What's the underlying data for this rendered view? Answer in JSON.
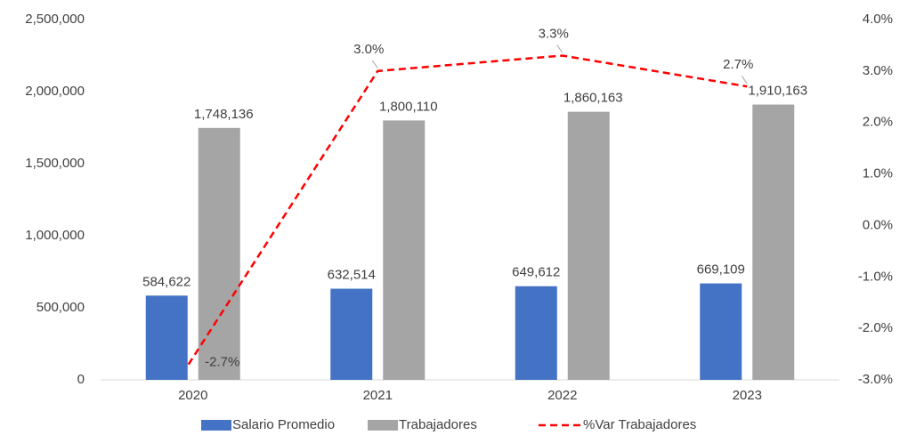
{
  "chart_data": {
    "type": "bar",
    "categories": [
      "2020",
      "2021",
      "2022",
      "2023"
    ],
    "series": [
      {
        "name": "Salario Promedio",
        "color": "#4472c4",
        "values": [
          584622,
          632514,
          649612,
          669109
        ],
        "value_labels": [
          "584,622",
          "632,514",
          "649,612",
          "669,109"
        ]
      },
      {
        "name": "Trabajadores",
        "color": "#a5a5a5",
        "values": [
          1748136,
          1800110,
          1860163,
          1910163
        ],
        "value_labels": [
          "1,748,136",
          "1,800,110",
          "1,860,163",
          "1,910,163"
        ]
      },
      {
        "name": "%Var Trabajadores",
        "color": "#ff0000",
        "type": "line",
        "axis": "y2",
        "values": [
          -2.7,
          3.0,
          3.3,
          2.7
        ],
        "value_labels": [
          "-2.7%",
          "3.0%",
          "3.3%",
          "2.7%"
        ]
      }
    ],
    "ylim": [
      0,
      2500000
    ],
    "yticks": [
      {
        "value": 0,
        "label": "0"
      },
      {
        "value": 500000,
        "label": "500,000"
      },
      {
        "value": 1000000,
        "label": "1,000,000"
      },
      {
        "value": 1500000,
        "label": "1,500,000"
      },
      {
        "value": 2000000,
        "label": "2,000,000"
      },
      {
        "value": 2500000,
        "label": "2,500,000"
      }
    ],
    "y2lim": [
      -3,
      4
    ],
    "y2ticks": [
      {
        "value": -3,
        "label": "-3.0%"
      },
      {
        "value": -2,
        "label": "-2.0%"
      },
      {
        "value": -1,
        "label": "-1.0%"
      },
      {
        "value": 0,
        "label": "0.0%"
      },
      {
        "value": 1,
        "label": "1.0%"
      },
      {
        "value": 2,
        "label": "2.0%"
      },
      {
        "value": 3,
        "label": "3.0%"
      },
      {
        "value": 4,
        "label": "4.0%"
      }
    ],
    "grid": false,
    "legend": "bottom"
  }
}
